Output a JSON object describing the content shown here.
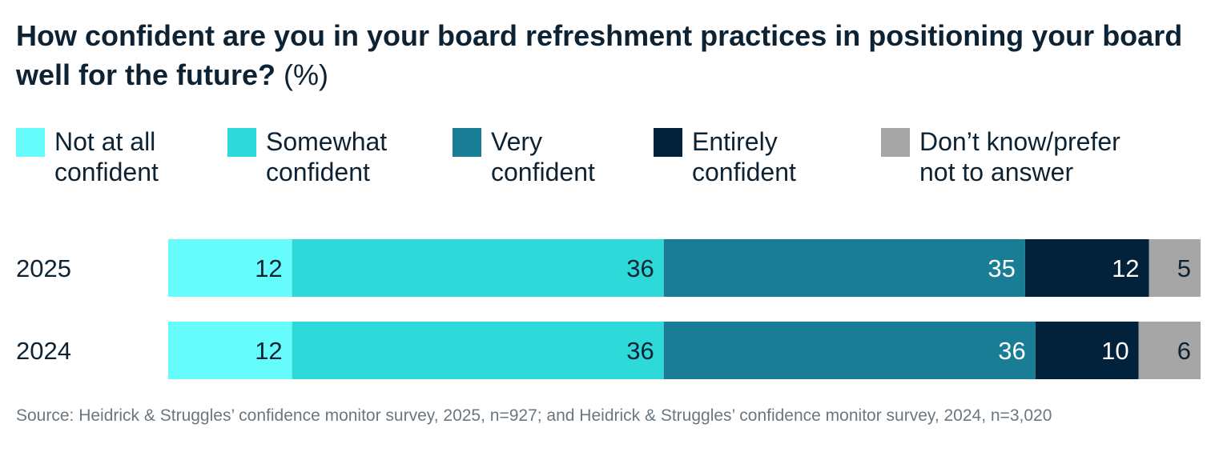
{
  "title": {
    "main": "How confident are you in your board refreshment practices in positioning your board well for the future?",
    "unit": "(%)"
  },
  "chart_data": {
    "type": "bar",
    "orientation": "horizontal",
    "stacked": true,
    "categories": [
      "2025",
      "2024"
    ],
    "series": [
      {
        "name": "Not at all\nconfident",
        "color": "#66fcfc",
        "label_color": "#0d2233",
        "values": [
          12,
          12
        ]
      },
      {
        "name": "Somewhat\nconfident",
        "color": "#2ed9d9",
        "label_color": "#0d2233",
        "values": [
          36,
          36
        ]
      },
      {
        "name": "Very\nconfident",
        "color": "#1a7d96",
        "label_color": "#ffffff",
        "values": [
          35,
          36
        ]
      },
      {
        "name": "Entirely\nconfident",
        "color": "#02213a",
        "label_color": "#ffffff",
        "values": [
          12,
          10
        ]
      },
      {
        "name": "Don’t know/prefer\nnot to answer",
        "color": "#a6a6a6",
        "label_color": "#0d2233",
        "values": [
          5,
          6
        ]
      }
    ],
    "legend_position": "top",
    "grid": false
  },
  "source": "Source: Heidrick & Struggles’ confidence monitor survey, 2025, n=927; and Heidrick & Struggles’ confidence monitor survey, 2024, n=3,020"
}
